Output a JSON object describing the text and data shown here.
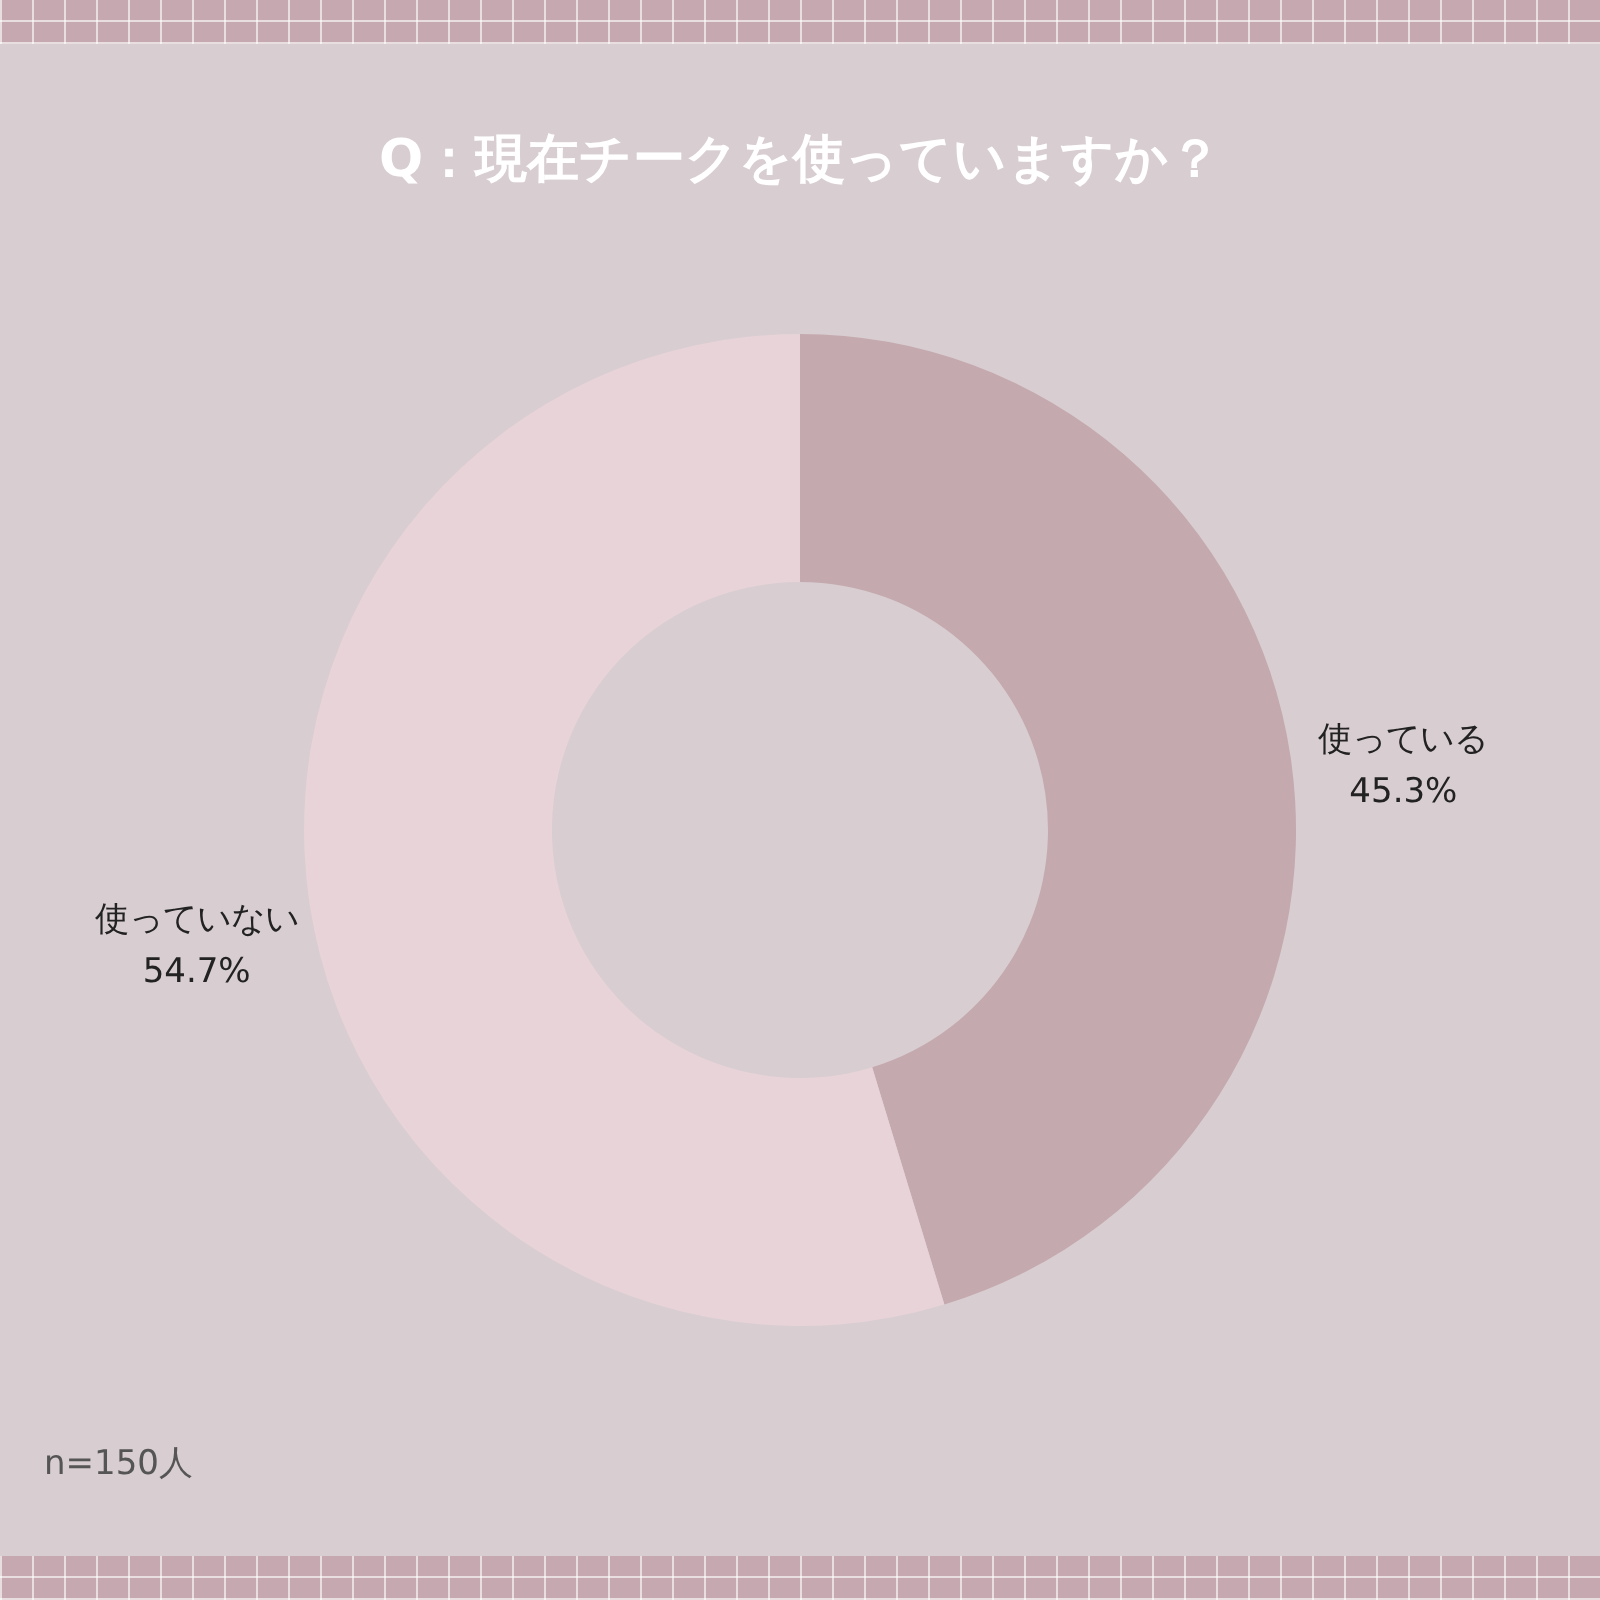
{
  "chart_data": {
    "type": "donut",
    "title": "Q：現在チークを使っていますか？",
    "categories": [
      "使っている",
      "使っていない"
    ],
    "values": [
      45.3,
      54.7
    ],
    "value_labels": [
      "45.3%",
      "54.7%"
    ],
    "colors": [
      "#c4a9ae",
      "#e7d3d8"
    ],
    "annotations": [
      "n=150人"
    ]
  }
}
